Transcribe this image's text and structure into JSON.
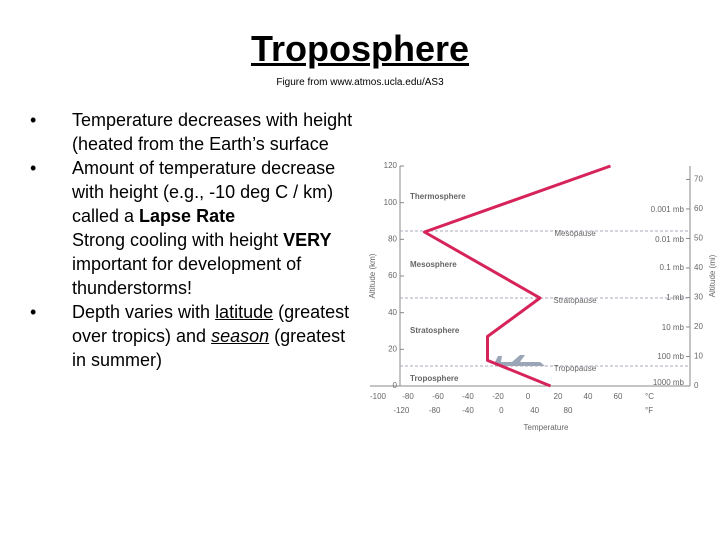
{
  "title": "Troposphere",
  "caption": "Figure from www.atmos.ucla.edu/AS3",
  "bullets": [
    {
      "bullet": true,
      "parts": [
        {
          "text": "Temperature decreases with height (heated from the Earth’s surface"
        }
      ]
    },
    {
      "bullet": true,
      "parts": [
        {
          "text": "Amount of temperature decrease with height (e.g., -10 deg C / km) called a "
        },
        {
          "text": "Lapse Rate",
          "style": "bold"
        }
      ]
    },
    {
      "bullet": false,
      "parts": [
        {
          "text": "Strong cooling with height "
        },
        {
          "text": "VERY",
          "style": "bold"
        },
        {
          "text": " important for development of thunderstorms!"
        }
      ]
    },
    {
      "bullet": true,
      "parts": [
        {
          "text": "Depth varies with "
        },
        {
          "text": "latitude",
          "style": "underline"
        },
        {
          "text": " (greatest over tropics) and "
        },
        {
          "text": "season",
          "style": "italic-underline"
        },
        {
          "text": " (greatest in summer)"
        }
      ]
    }
  ],
  "chart_data": {
    "type": "line",
    "xlabel": "Temperature",
    "ylabel": "Altitude (km)",
    "y2label": "Altitude (mi)",
    "x_unit": "°C",
    "x2_unit": "°F",
    "x": [
      15,
      -27,
      -27,
      8,
      -69,
      55
    ],
    "y": [
      0,
      14,
      27,
      48,
      84,
      120
    ],
    "color": "#d6245a",
    "xlim": [
      -100,
      60
    ],
    "xticks": [
      -100,
      -80,
      -60,
      -40,
      -20,
      0,
      20,
      40,
      60
    ],
    "x2lim": [
      -148,
      140
    ],
    "x2ticks": [
      -120,
      -80,
      -40,
      0,
      40,
      80
    ],
    "ylim": [
      0,
      120
    ],
    "yticks": [
      0,
      20,
      40,
      60,
      80,
      100,
      120
    ],
    "y2lim": [
      0,
      74.56
    ],
    "y2ticks": [
      0,
      10,
      20,
      30,
      40,
      50,
      60,
      70
    ],
    "layers": [
      "Thermosphere",
      "Mesosphere",
      "Stratosphere",
      "Troposphere"
    ],
    "levels": [
      "Mesopause",
      "Stratopause",
      "Tropopause"
    ],
    "pressures": [
      "0.001 mb",
      "0.01 mb",
      "0.1 mb",
      "1 mb",
      "10 mb",
      "100 mb",
      "1000 mb"
    ]
  }
}
